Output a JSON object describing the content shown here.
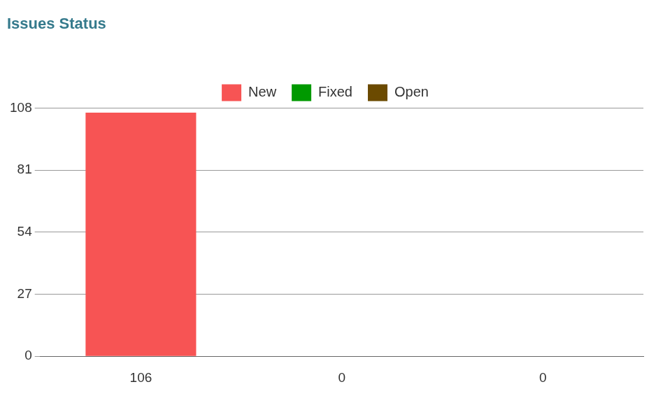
{
  "chart_data": {
    "type": "bar",
    "title": "Issues Status",
    "categories": [
      "106",
      "0",
      "0"
    ],
    "series": [
      {
        "name": "New",
        "color": "#f75454",
        "values": [
          106,
          null,
          null
        ]
      },
      {
        "name": "Fixed",
        "color": "#009900",
        "values": [
          null,
          0,
          null
        ]
      },
      {
        "name": "Open",
        "color": "#6b4a00",
        "values": [
          null,
          null,
          0
        ]
      }
    ],
    "ylim": [
      0,
      108
    ],
    "yticks": [
      0,
      27,
      54,
      81,
      108
    ],
    "grid": true,
    "legend": "top"
  }
}
